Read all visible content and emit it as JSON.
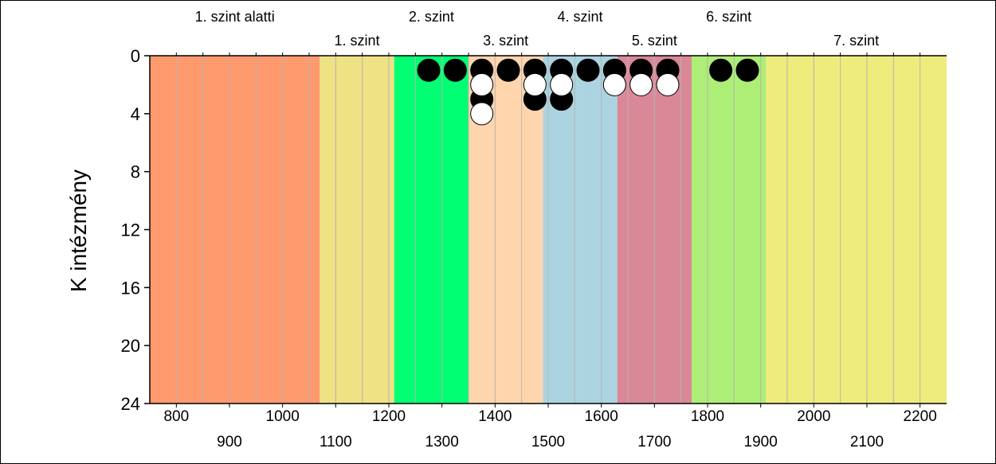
{
  "chart_data": {
    "type": "scatter",
    "title": "",
    "ylabel": "K intézmény",
    "xlabel": "",
    "xlim": [
      750,
      2250
    ],
    "ylim": [
      0,
      24
    ],
    "y_inverted": true,
    "yticks": [
      0,
      4,
      8,
      12,
      16,
      20,
      24
    ],
    "xticks_top_row": [
      800,
      1000,
      1200,
      1400,
      1600,
      1800,
      2000,
      2200
    ],
    "xticks_bottom_row": [
      900,
      1100,
      1300,
      1500,
      1700,
      1900,
      2100
    ],
    "grid_x_step": 50,
    "bands": [
      {
        "label": "1. szint alatti",
        "from": 750,
        "to": 1070,
        "color": "#FF9A6E",
        "label_row": "top"
      },
      {
        "label": "1. szint",
        "from": 1070,
        "to": 1210,
        "color": "#EEE284",
        "label_row": "bottom"
      },
      {
        "label": "2. szint",
        "from": 1210,
        "to": 1350,
        "color": "#00FF73",
        "label_row": "top"
      },
      {
        "label": "3. szint",
        "from": 1350,
        "to": 1490,
        "color": "#FFD5AD",
        "label_row": "bottom"
      },
      {
        "label": "4. szint",
        "from": 1490,
        "to": 1630,
        "color": "#ABD4E0",
        "label_row": "top"
      },
      {
        "label": "5. szint",
        "from": 1630,
        "to": 1770,
        "color": "#DA8898",
        "label_row": "bottom"
      },
      {
        "label": "6. szint",
        "from": 1770,
        "to": 1910,
        "color": "#ADEE76",
        "label_row": "top"
      },
      {
        "label": "7. szint",
        "from": 1910,
        "to": 2250,
        "color": "#EEEC7C",
        "label_row": "bottom"
      }
    ],
    "series": [
      {
        "fill": "#000000",
        "points": [
          {
            "x": 1275,
            "y": 1
          },
          {
            "x": 1325,
            "y": 1
          },
          {
            "x": 1375,
            "y": 1
          },
          {
            "x": 1425,
            "y": 1
          },
          {
            "x": 1475,
            "y": 1
          },
          {
            "x": 1525,
            "y": 1
          },
          {
            "x": 1575,
            "y": 1
          },
          {
            "x": 1625,
            "y": 1
          },
          {
            "x": 1675,
            "y": 1
          },
          {
            "x": 1725,
            "y": 1
          },
          {
            "x": 1825,
            "y": 1
          },
          {
            "x": 1875,
            "y": 1
          },
          {
            "x": 1375,
            "y": 3
          },
          {
            "x": 1475,
            "y": 3
          },
          {
            "x": 1525,
            "y": 3
          }
        ]
      },
      {
        "fill": "#ffffff",
        "points": [
          {
            "x": 1375,
            "y": 2
          },
          {
            "x": 1475,
            "y": 2
          },
          {
            "x": 1525,
            "y": 2
          },
          {
            "x": 1625,
            "y": 2
          },
          {
            "x": 1675,
            "y": 2
          },
          {
            "x": 1725,
            "y": 2
          },
          {
            "x": 1375,
            "y": 4
          }
        ]
      }
    ]
  }
}
